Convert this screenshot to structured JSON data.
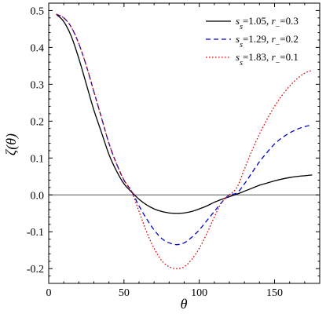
{
  "chart_data": {
    "type": "line",
    "xlabel": "θ",
    "ylabel": "ζ(θ)",
    "xlim": [
      0,
      180
    ],
    "ylim": [
      -0.24,
      0.52
    ],
    "xticks": [
      0,
      50,
      100,
      150
    ],
    "xtick_labels": [
      "0",
      "50",
      "100",
      "150"
    ],
    "yticks": [
      -0.2,
      -0.1,
      0.0,
      0.1,
      0.2,
      0.3,
      0.4,
      0.5
    ],
    "ytick_labels": [
      "-0.2",
      "-0.1",
      "0.0",
      "0.1",
      "0.2",
      "0.3",
      "0.4",
      "0.5"
    ],
    "legend_position": "top-right",
    "reference_line_y": 0,
    "series": [
      {
        "name": "s_s=1.05, r_−=0.3",
        "name_parts": {
          "s": "s",
          "sub": "s",
          "s_val": "=1.05, ",
          "r": "r",
          "r_sub": "−",
          "r_val": "=0.3"
        },
        "color": "#000000",
        "dash": "solid",
        "x": [
          5,
          10,
          15,
          20,
          25,
          30,
          35,
          40,
          45,
          50,
          55,
          60,
          65,
          70,
          75,
          80,
          85,
          90,
          95,
          100,
          105,
          110,
          115,
          120,
          125,
          130,
          135,
          140,
          145,
          150,
          155,
          160,
          165,
          170,
          175
        ],
        "y": [
          0.49,
          0.47,
          0.43,
          0.37,
          0.3,
          0.23,
          0.17,
          0.11,
          0.065,
          0.03,
          0.008,
          -0.012,
          -0.027,
          -0.038,
          -0.045,
          -0.049,
          -0.05,
          -0.049,
          -0.045,
          -0.038,
          -0.03,
          -0.02,
          -0.012,
          -0.005,
          0.002,
          0.01,
          0.018,
          0.026,
          0.032,
          0.038,
          0.043,
          0.047,
          0.05,
          0.052,
          0.054
        ]
      },
      {
        "name": "s_s=1.29, r_−=0.2",
        "name_parts": {
          "s": "s",
          "sub": "s",
          "s_val": "=1.29, ",
          "r": "r",
          "r_sub": "−",
          "r_val": "=0.2"
        },
        "color": "#0000cc",
        "dash": "dashed",
        "x": [
          5,
          10,
          15,
          20,
          25,
          30,
          35,
          40,
          45,
          50,
          55,
          60,
          65,
          70,
          75,
          80,
          85,
          90,
          95,
          100,
          105,
          110,
          115,
          120,
          125,
          130,
          135,
          140,
          145,
          150,
          155,
          160,
          165,
          170,
          175
        ],
        "y": [
          0.49,
          0.48,
          0.455,
          0.41,
          0.35,
          0.28,
          0.21,
          0.14,
          0.085,
          0.04,
          0.01,
          -0.03,
          -0.065,
          -0.095,
          -0.118,
          -0.13,
          -0.135,
          -0.13,
          -0.115,
          -0.095,
          -0.07,
          -0.045,
          -0.02,
          0.0,
          0.005,
          0.03,
          0.06,
          0.09,
          0.115,
          0.138,
          0.155,
          0.168,
          0.178,
          0.185,
          0.19
        ]
      },
      {
        "name": "s_s=1.83, r_−=0.1",
        "name_parts": {
          "s": "s",
          "sub": "s",
          "s_val": "=1.83, ",
          "r": "r",
          "r_sub": "−",
          "r_val": "=0.1"
        },
        "color": "#dd0000",
        "dash": "dotted",
        "x": [
          5,
          10,
          15,
          20,
          25,
          30,
          35,
          40,
          45,
          50,
          55,
          60,
          65,
          70,
          75,
          80,
          85,
          90,
          95,
          100,
          105,
          110,
          115,
          120,
          125,
          130,
          135,
          140,
          145,
          150,
          155,
          160,
          165,
          170,
          175
        ],
        "y": [
          0.49,
          0.48,
          0.455,
          0.41,
          0.35,
          0.28,
          0.21,
          0.14,
          0.085,
          0.04,
          0.01,
          -0.045,
          -0.1,
          -0.145,
          -0.178,
          -0.195,
          -0.2,
          -0.195,
          -0.175,
          -0.145,
          -0.105,
          -0.06,
          -0.02,
          0.0,
          0.02,
          0.07,
          0.12,
          0.165,
          0.205,
          0.24,
          0.27,
          0.295,
          0.315,
          0.33,
          0.338
        ]
      }
    ]
  }
}
